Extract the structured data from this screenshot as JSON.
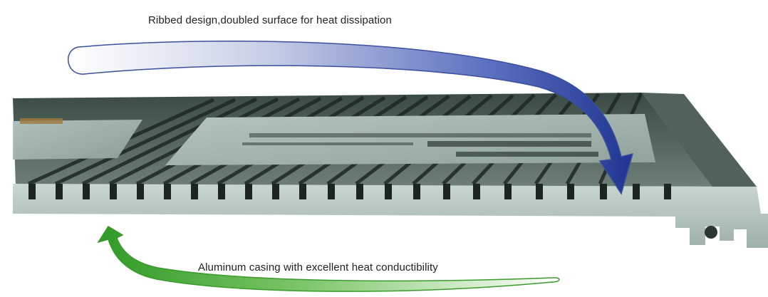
{
  "captions": {
    "top": "Ribbed design,doubled surface for heat dissipation",
    "bottom": "Aluminum casing with excellent heat conductibility"
  },
  "colors": {
    "blue_arrow": "#2a3f9a",
    "green_arrow": "#3aa32c",
    "casing_metal": "#b7c7c0",
    "casing_dark": "#2f3a36",
    "label_plate": "#9fb2aa"
  },
  "icons": {
    "top_arrow": "curved-arrow-down-icon",
    "bottom_arrow": "curved-arrow-up-icon"
  }
}
